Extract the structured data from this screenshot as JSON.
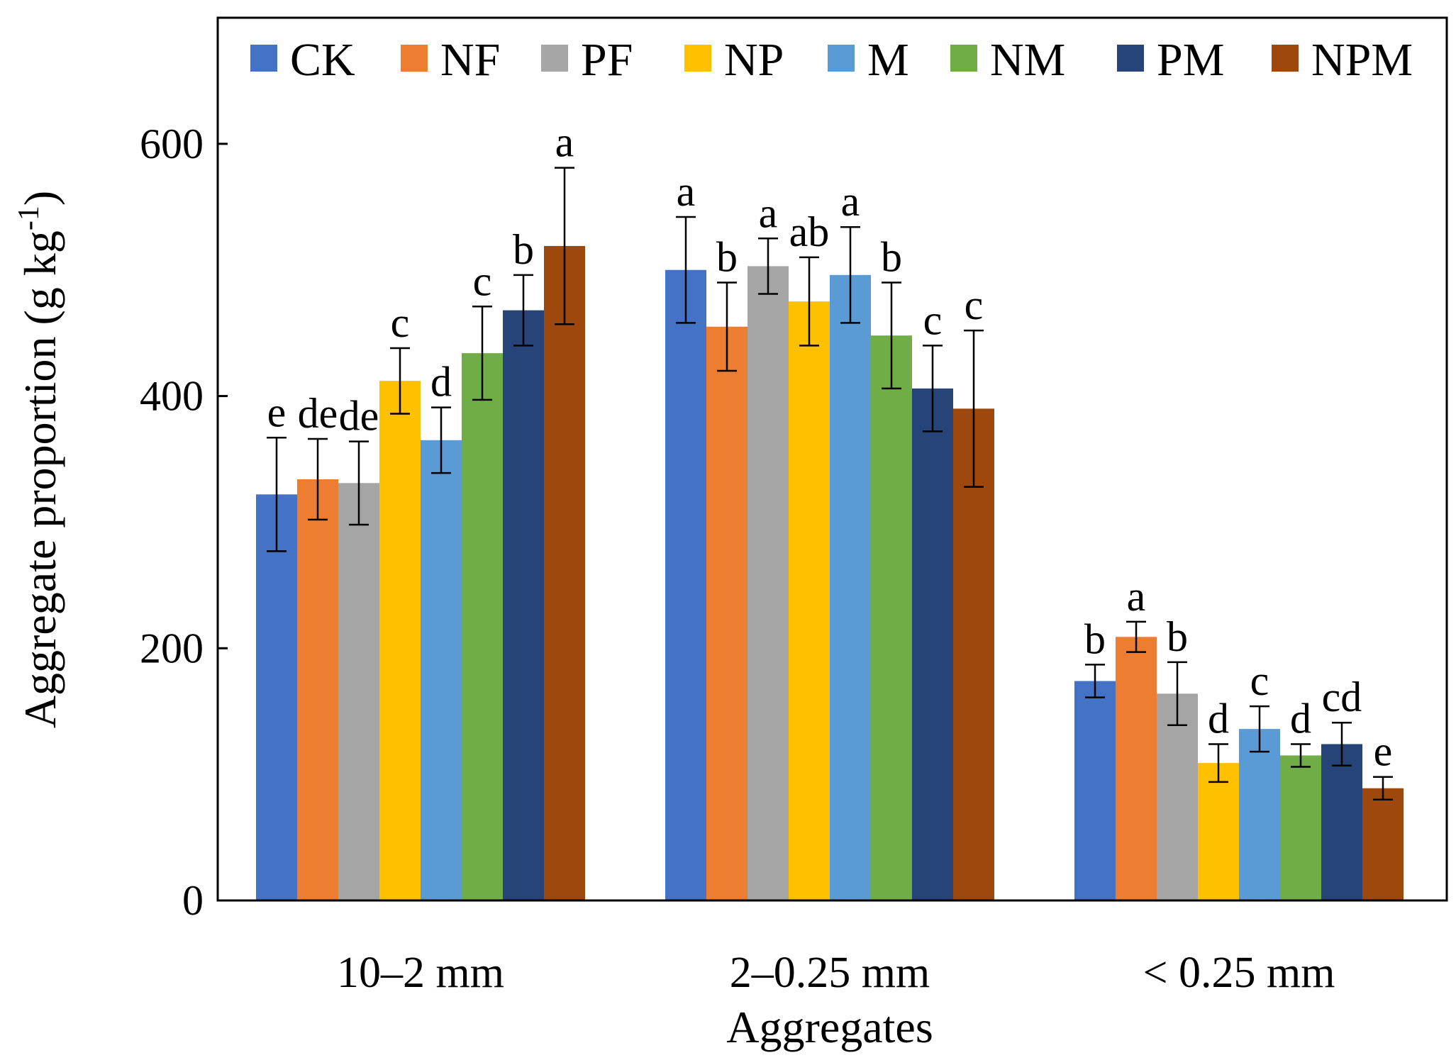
{
  "chart_data": {
    "type": "bar",
    "xlabel": "Aggregates",
    "ylabel_main": "Aggregate proportion (g kg",
    "ylabel_sup": "-1",
    "ylabel_end": ")",
    "ylim": [
      0,
      700
    ],
    "yticks": [
      0,
      200,
      400,
      600
    ],
    "ytick_labels": [
      "0",
      "200",
      "400",
      "600"
    ],
    "categories": [
      "10–2 mm",
      "2–0.25 mm",
      "< 0.25 mm"
    ],
    "grid": false,
    "legend_position": "top",
    "series": [
      {
        "name": "CK",
        "color": "#4472C4",
        "values": [
          322,
          500,
          174
        ],
        "errors": [
          45,
          42,
          13
        ],
        "letters": [
          "e",
          "a",
          "b"
        ]
      },
      {
        "name": "NF",
        "color": "#ED7D31",
        "values": [
          334,
          455,
          209
        ],
        "errors": [
          32,
          35,
          12
        ],
        "letters": [
          "de",
          "b",
          "a"
        ]
      },
      {
        "name": "PF",
        "color": "#A5A5A5",
        "values": [
          331,
          503,
          164
        ],
        "errors": [
          33,
          22,
          25
        ],
        "letters": [
          "de",
          "a",
          "b"
        ]
      },
      {
        "name": "NP",
        "color": "#FFC000",
        "values": [
          412,
          475,
          109
        ],
        "errors": [
          26,
          35,
          15
        ],
        "letters": [
          "c",
          "ab",
          "d"
        ]
      },
      {
        "name": "M",
        "color": "#5B9BD5",
        "values": [
          365,
          496,
          136
        ],
        "errors": [
          26,
          38,
          18
        ],
        "letters": [
          "d",
          "a",
          "c"
        ]
      },
      {
        "name": "NM",
        "color": "#70AD47",
        "values": [
          434,
          448,
          115
        ],
        "errors": [
          37,
          42,
          9
        ],
        "letters": [
          "c",
          "b",
          "d"
        ]
      },
      {
        "name": "PM",
        "color": "#264478",
        "values": [
          468,
          406,
          124
        ],
        "errors": [
          28,
          34,
          17
        ],
        "letters": [
          "b",
          "c",
          "cd"
        ]
      },
      {
        "name": "NPM",
        "color": "#9E480E",
        "values": [
          519,
          390,
          89
        ],
        "errors": [
          62,
          62,
          9
        ],
        "letters": [
          "a",
          "c",
          "e"
        ]
      }
    ]
  }
}
